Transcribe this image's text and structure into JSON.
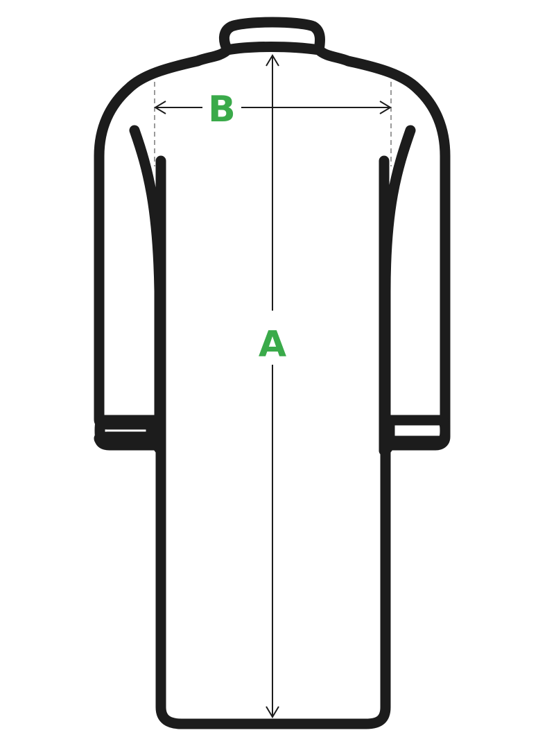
{
  "diagram": {
    "labels": {
      "length": "A",
      "shoulder_width": "B"
    },
    "colors": {
      "outline": "#1c1c1c",
      "label": "#3aaa4a",
      "arrow": "#1c1c1c",
      "guide": "#9a9a9a",
      "background": "#ffffff"
    },
    "icons": {
      "garment": "long-coat-outline-icon",
      "length_arrow": "double-arrow-vertical-icon",
      "width_arrow": "double-arrow-horizontal-icon"
    }
  }
}
